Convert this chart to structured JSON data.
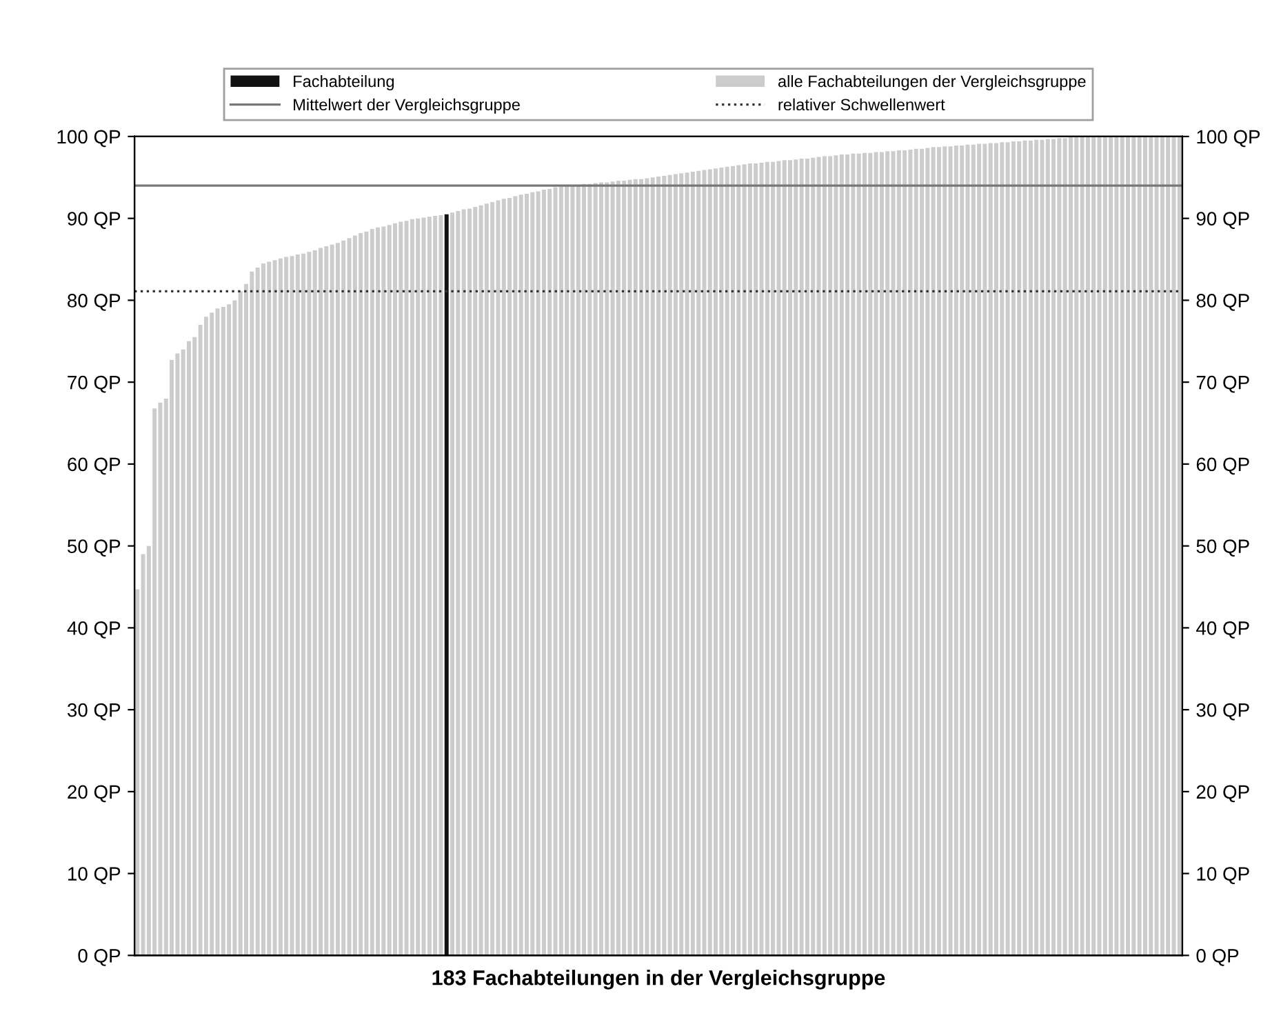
{
  "chart_data": {
    "type": "bar",
    "xlabel": "183 Fachabteilungen in der Vergleichsgruppe",
    "categories": [
      null,
      null,
      null,
      null,
      null,
      null,
      null,
      null,
      null,
      null,
      null,
      null,
      null,
      null,
      null,
      null,
      null,
      null,
      null,
      null,
      null,
      null,
      null,
      null,
      null,
      null,
      null,
      null,
      null,
      null,
      null,
      null,
      null,
      null,
      null,
      null,
      null,
      null,
      null,
      null,
      null,
      null,
      null,
      null,
      null,
      null,
      null,
      null,
      null,
      null,
      null,
      null,
      null,
      null,
      null,
      null,
      null,
      null,
      null,
      null,
      null,
      null,
      null,
      null,
      null,
      null,
      null,
      null,
      null,
      null,
      null,
      null,
      null,
      null,
      null,
      null,
      null,
      null,
      null,
      null,
      null,
      null,
      null,
      null,
      null,
      null,
      null,
      null,
      null,
      null,
      null,
      null,
      null,
      null,
      null,
      null,
      null,
      null,
      null,
      null,
      null,
      null,
      null,
      null,
      null,
      null,
      null,
      null,
      null,
      null,
      null,
      null,
      null,
      null,
      null,
      null,
      null,
      null,
      null,
      null,
      null,
      null,
      null,
      null,
      null,
      null,
      null,
      null,
      null,
      null,
      null,
      null,
      null,
      null,
      null,
      null,
      null,
      null,
      null,
      null,
      null,
      null,
      null,
      null,
      null,
      null,
      null,
      null,
      null,
      null,
      null,
      null,
      null,
      null,
      null,
      null,
      null,
      null,
      null,
      null,
      null,
      null,
      null,
      null,
      null,
      null,
      null,
      null,
      null,
      null,
      null,
      null,
      null,
      null,
      null,
      null,
      null,
      null,
      null,
      null,
      null,
      null,
      null
    ],
    "series": [
      {
        "name": "Fachabteilung",
        "color": "#111111",
        "values": [
          null,
          null,
          null,
          null,
          null,
          null,
          null,
          null,
          null,
          null,
          null,
          null,
          null,
          null,
          null,
          null,
          null,
          null,
          null,
          null,
          null,
          null,
          null,
          null,
          null,
          null,
          null,
          null,
          null,
          null,
          null,
          null,
          null,
          null,
          null,
          null,
          null,
          null,
          null,
          null,
          null,
          null,
          null,
          null,
          null,
          null,
          null,
          null,
          null,
          null,
          null,
          null,
          null,
          null,
          90.5,
          null,
          null,
          null,
          null,
          null,
          null,
          null,
          null,
          null,
          null,
          null,
          null,
          null,
          null,
          null,
          null,
          null,
          null,
          null,
          null,
          null,
          null,
          null,
          null,
          null,
          null,
          null,
          null,
          null,
          null,
          null,
          null,
          null,
          null,
          null,
          null,
          null,
          null,
          null,
          null,
          null,
          null,
          null,
          null,
          null,
          null,
          null,
          null,
          null,
          null,
          null,
          null,
          null,
          null,
          null,
          null,
          null,
          null,
          null,
          null,
          null,
          null,
          null,
          null,
          null,
          null,
          null,
          null,
          null,
          null,
          null,
          null,
          null,
          null,
          null,
          null,
          null,
          null,
          null,
          null,
          null,
          null,
          null,
          null,
          null,
          null,
          null,
          null,
          null,
          null,
          null,
          null,
          null,
          null,
          null,
          null,
          null,
          null,
          null,
          null,
          null,
          null,
          null,
          null,
          null,
          null,
          null,
          null,
          null,
          null,
          null,
          null,
          null,
          null,
          null,
          null,
          null,
          null,
          null,
          null,
          null,
          null,
          null,
          null,
          null,
          null,
          null,
          null
        ]
      },
      {
        "name": "alle Fachabteilungen der Vergleichsgruppe",
        "color": "#cccccc",
        "values": [
          44.7,
          49,
          50,
          66.8,
          67.5,
          68,
          72.7,
          73.5,
          74,
          75,
          75.5,
          77,
          78,
          78.5,
          79,
          79.2,
          79.5,
          80,
          81.1,
          82,
          83.5,
          84,
          84.5,
          84.7,
          84.9,
          85.1,
          85.3,
          85.4,
          85.6,
          85.7,
          85.9,
          86.1,
          86.4,
          86.6,
          86.8,
          87,
          87.3,
          87.6,
          87.9,
          88.2,
          88.4,
          88.7,
          88.9,
          89,
          89.2,
          89.4,
          89.6,
          89.7,
          89.9,
          90,
          90.1,
          90.2,
          90.3,
          90.4,
          null,
          90.7,
          90.9,
          91.1,
          91.2,
          91.4,
          91.6,
          91.8,
          92,
          92.2,
          92.4,
          92.5,
          92.7,
          92.9,
          93,
          93.2,
          93.3,
          93.5,
          93.6,
          93.8,
          93.9,
          94,
          94,
          94.1,
          94.2,
          94.2,
          94.3,
          94.4,
          94.4,
          94.5,
          94.6,
          94.6,
          94.7,
          94.8,
          94.8,
          94.9,
          95,
          95.1,
          95.2,
          95.3,
          95.4,
          95.5,
          95.6,
          95.7,
          95.8,
          95.9,
          96,
          96.1,
          96.2,
          96.3,
          96.4,
          96.5,
          96.6,
          96.7,
          96.7,
          96.8,
          96.9,
          96.9,
          97,
          97.1,
          97.1,
          97.2,
          97.3,
          97.3,
          97.4,
          97.5,
          97.6,
          97.6,
          97.7,
          97.8,
          97.8,
          97.9,
          97.9,
          98,
          98,
          98.1,
          98.1,
          98.2,
          98.2,
          98.3,
          98.3,
          98.4,
          98.5,
          98.5,
          98.6,
          98.7,
          98.7,
          98.8,
          98.8,
          98.9,
          98.9,
          99,
          99,
          99.1,
          99.1,
          99.2,
          99.2,
          99.3,
          99.3,
          99.4,
          99.4,
          99.5,
          99.5,
          99.6,
          99.6,
          99.7,
          99.7,
          99.8,
          99.8,
          99.9,
          99.9,
          100,
          100,
          100,
          100,
          100,
          100,
          100,
          100,
          100,
          100,
          100,
          100,
          100,
          100,
          100,
          100,
          100,
          100
        ]
      }
    ],
    "ylim": [
      0,
      100
    ],
    "yticks": [
      {
        "value": 0,
        "label": "0 QP"
      },
      {
        "value": 10,
        "label": "10 QP"
      },
      {
        "value": 20,
        "label": "20 QP"
      },
      {
        "value": 30,
        "label": "30 QP"
      },
      {
        "value": 40,
        "label": "40 QP"
      },
      {
        "value": 50,
        "label": "50 QP"
      },
      {
        "value": 60,
        "label": "60 QP"
      },
      {
        "value": 70,
        "label": "70 QP"
      },
      {
        "value": 80,
        "label": "80 QP"
      },
      {
        "value": 90,
        "label": "90 QP"
      },
      {
        "value": 100,
        "label": "100 QP"
      }
    ],
    "y2lim": [
      0,
      100
    ],
    "y2ticks": [
      {
        "value": 0,
        "label": "0 QP"
      },
      {
        "value": 10,
        "label": "10 QP"
      },
      {
        "value": 20,
        "label": "20 QP"
      },
      {
        "value": 30,
        "label": "30 QP"
      },
      {
        "value": 40,
        "label": "40 QP"
      },
      {
        "value": 50,
        "label": "50 QP"
      },
      {
        "value": 60,
        "label": "60 QP"
      },
      {
        "value": 70,
        "label": "70 QP"
      },
      {
        "value": 80,
        "label": "80 QP"
      },
      {
        "value": 90,
        "label": "90 QP"
      },
      {
        "value": 100,
        "label": "100 QP"
      }
    ],
    "ref_lines": [
      {
        "axis": "y",
        "value": 94,
        "label": "Mittelwert der Vergleichsgruppe",
        "color": "#777777",
        "line_style": "solid"
      },
      {
        "axis": "y",
        "value": 81.1,
        "label": "relativer Schwellenwert",
        "color": "#333333",
        "line_style": "dotted"
      }
    ],
    "legend": "top",
    "grid": false
  }
}
